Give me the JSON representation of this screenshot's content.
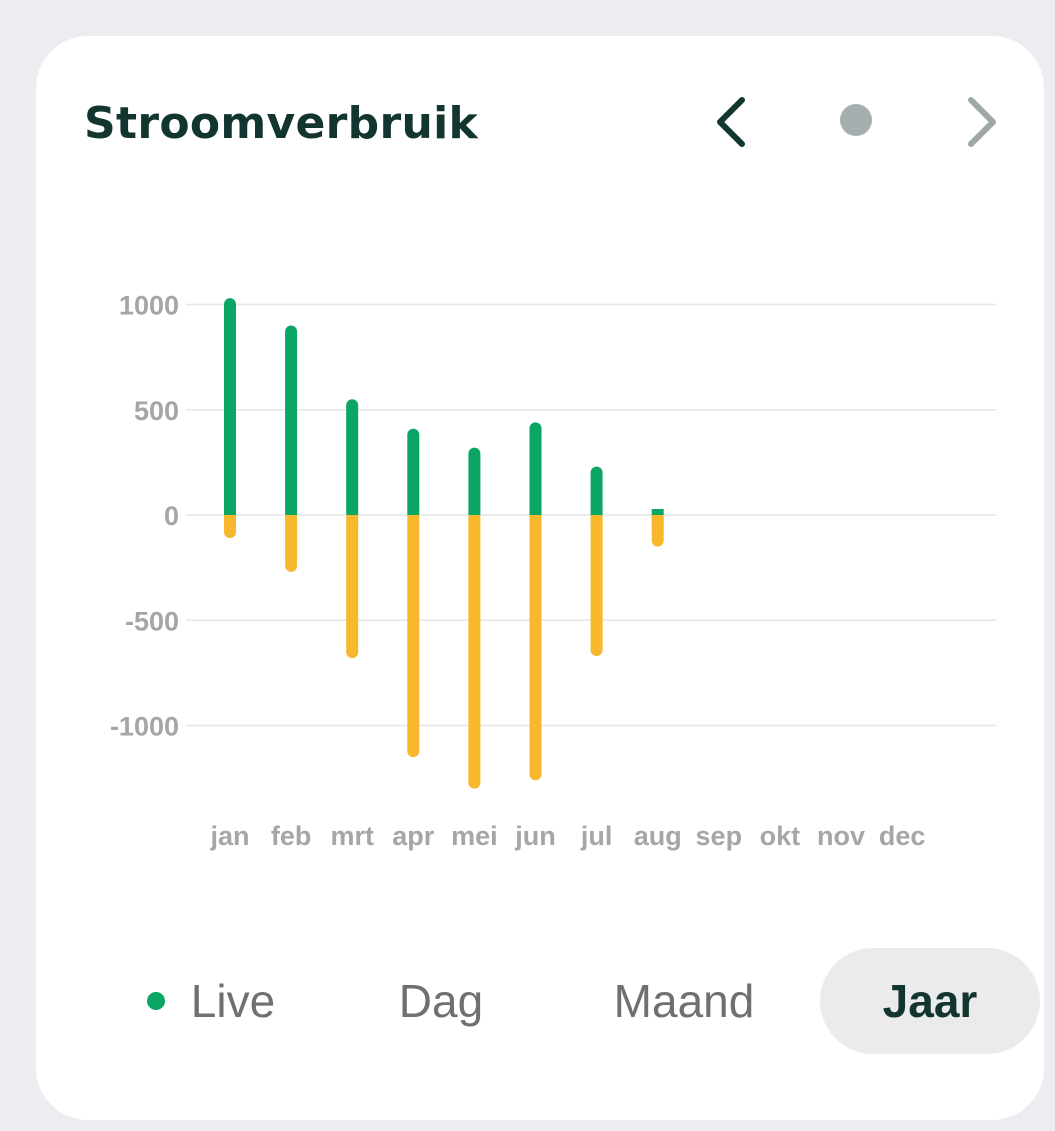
{
  "card": {
    "title": "Stroomverbruik"
  },
  "nav": {
    "prev_icon": "chevron-left-icon",
    "indicator_icon": "dot-icon",
    "next_icon": "chevron-right-icon"
  },
  "tabs": {
    "live": "Live",
    "dag": "Dag",
    "maand": "Maand",
    "jaar": "Jaar",
    "selected": "Jaar"
  },
  "colors": {
    "consumption": "#0ba664",
    "production": "#f7b82d",
    "title": "#12352f",
    "axis_text": "#a6a6a6",
    "grid": "#e6e6e6"
  },
  "chart_data": {
    "type": "bar",
    "title": "Stroomverbruik",
    "xlabel": "",
    "ylabel": "",
    "ylim": [
      -1300,
      1030
    ],
    "yticks": [
      1000,
      500,
      0,
      -500,
      -1000
    ],
    "grid": true,
    "categories": [
      "jan",
      "feb",
      "mrt",
      "apr",
      "mei",
      "jun",
      "jul",
      "aug",
      "sep",
      "okt",
      "nov",
      "dec"
    ],
    "series": [
      {
        "values": [
          1030,
          900,
          550,
          410,
          320,
          440,
          230,
          15,
          null,
          null,
          null,
          null
        ]
      },
      {
        "values": [
          -110,
          -270,
          -680,
          -1150,
          -1300,
          -1260,
          -670,
          -150,
          null,
          null,
          null,
          null
        ]
      }
    ]
  }
}
